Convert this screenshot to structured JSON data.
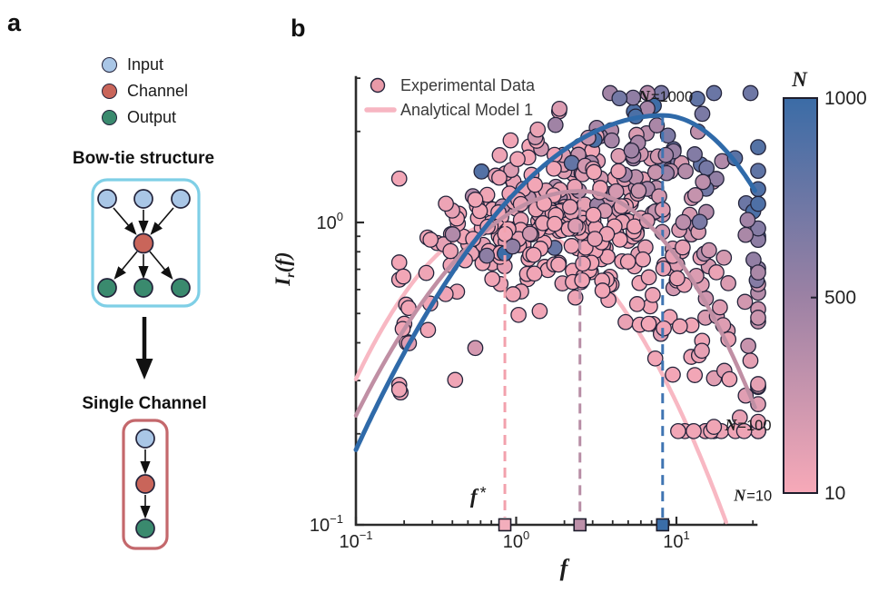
{
  "figure": {
    "panel_a": {
      "label": "a",
      "legend": [
        {
          "label": "Input",
          "color": "#a9c6e6"
        },
        {
          "label": "Channel",
          "color": "#c9655a"
        },
        {
          "label": "Output",
          "color": "#3a8a6e"
        }
      ],
      "bowtie_title": "Bow-tie structure",
      "single_title": "Single Channel",
      "palette": {
        "input": "#a9c6e6",
        "channel": "#c9655a",
        "output": "#3a8a6e",
        "node_edge": "#23233a"
      },
      "boxes": {
        "bowtie_border": "#7fcfe6",
        "single_border": "#c4686c"
      }
    },
    "panel_b": {
      "label": "b",
      "legend": [
        {
          "marker": "circle",
          "label": "Experimental Data"
        },
        {
          "marker": "line",
          "label": "Analytical Model 1"
        }
      ]
    }
  },
  "chart_data": {
    "type": "scatter",
    "xscale": "log",
    "yscale": "log",
    "xlim": [
      0.1,
      31.6
    ],
    "ylim": [
      0.1,
      3.0
    ],
    "xlabel": "f",
    "ylabel_parts": {
      "base": "I",
      "sub": "r",
      "rest": "(f)"
    },
    "x_tick_labels": [
      {
        "base": "10",
        "exp": "−1",
        "lf": -1
      },
      {
        "base": "10",
        "exp": "0",
        "lf": 0
      },
      {
        "base": "10",
        "exp": "1",
        "lf": 1
      }
    ],
    "y_tick_labels": [
      {
        "base": "10",
        "exp": "0",
        "li": 0
      },
      {
        "base": "10",
        "exp": "−1",
        "li": -1
      }
    ],
    "curves": [
      {
        "name": "N=10",
        "f_peak": 0.85,
        "I_peak": 1.0,
        "kL": 0.6,
        "kR": 0.52,
        "lf_end": 1.316,
        "color": "#f8b8c3",
        "dash_color": "#f2a1ad",
        "marker_color": "#f3aebc",
        "width": 4.5,
        "layer": "under"
      },
      {
        "name": "N=100",
        "f_peak": 2.5,
        "I_peak": 1.27,
        "kL": 0.38,
        "kR": 0.6,
        "lf_end": 1.5,
        "color": "#c08fa4",
        "dash_color": "#b88da5",
        "marker_color": "#bd90a9",
        "width": 4.5,
        "layer": "over"
      },
      {
        "name": "N=1000",
        "f_peak": 8.2,
        "I_peak": 2.26,
        "kL": 0.302,
        "kR": 0.75,
        "lf_end": 1.5,
        "color": "#2f6aa9",
        "dash_color": "#3f74b2",
        "marker_color": "#3a6da8",
        "width": 5,
        "layer": "over"
      }
    ],
    "annotations": [
      {
        "pre": "N",
        "post": "=1000",
        "f": 8.55,
        "I": 2.51,
        "style": "ncurve"
      },
      {
        "pre": "N",
        "post": "=100",
        "f": 28.0,
        "I": 0.205,
        "style": "ncurve"
      },
      {
        "pre": "N",
        "post": "=10",
        "f": 30.0,
        "I": 0.12,
        "style": "ncurve"
      },
      {
        "pre": "f",
        "post": "*",
        "f": 0.58,
        "I": 0.118,
        "style": "fstar"
      }
    ],
    "colorbar": {
      "title": "N",
      "scale": "linear",
      "range": [
        10,
        1000
      ],
      "tick_labels": [
        "1000",
        "500",
        "10"
      ],
      "tick_values": [
        1000,
        500,
        10
      ],
      "top_color": "#3b6ca6",
      "mid_color": "#9b81a4",
      "bottom_color": "#f7a9b8"
    },
    "scatter_estimate": {
      "note": "dense experimental point cloud estimated from figure",
      "count": 460,
      "seed": 11,
      "logN_min": 1,
      "logN_span": 2,
      "skew": 1.4,
      "f_sigma": 0.45,
      "f_shift": 0.08,
      "right_tail_prob": 0.33,
      "right_tail_add": 0.75,
      "I_sigma": 0.13,
      "lf_clamp": [
        -0.73,
        1.51
      ],
      "li_clamp": [
        -0.69,
        0.428
      ],
      "point_radius": 8.2
    },
    "colors": {
      "scatter_edge": "#23233a",
      "cmap_low": "#f2a6b6",
      "cmap_mid": "#9b81a4",
      "cmap_high": "#3b6ca6",
      "legend_marker_fill": "#e89aa8",
      "legend_line": "#f7b6c2",
      "axis": "#2b2b2b",
      "text": "#3a3a3a"
    }
  }
}
